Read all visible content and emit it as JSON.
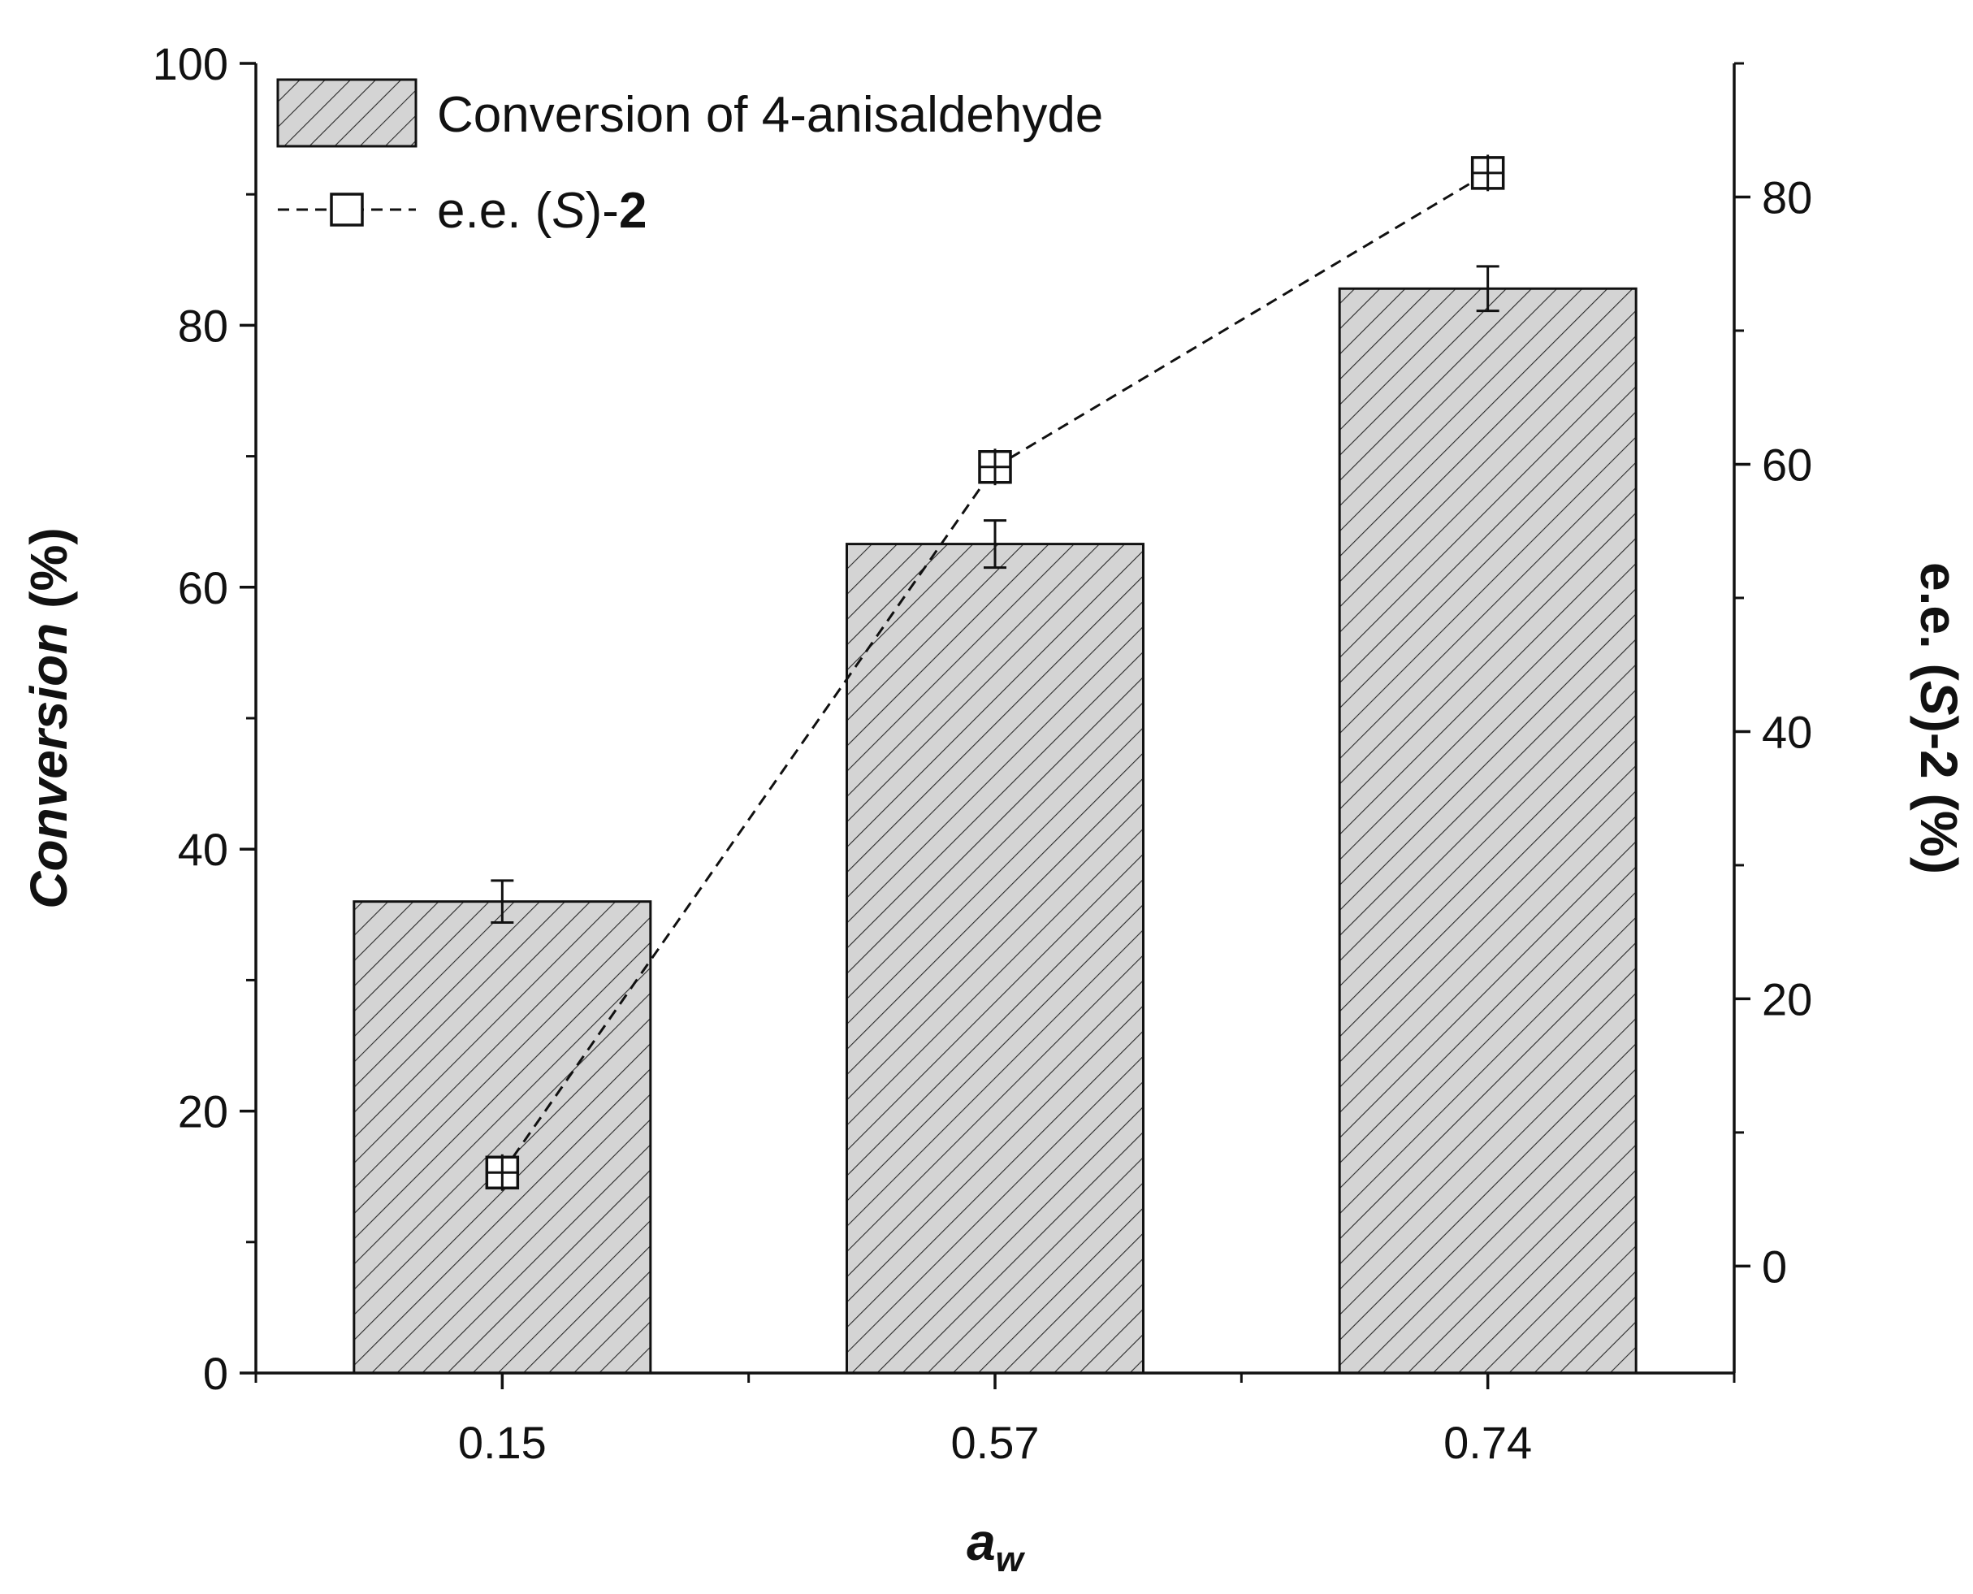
{
  "chart_data": {
    "type": "bar",
    "xlabel": "a",
    "xlabel_sub": "w",
    "categories": [
      "0.15",
      "0.57",
      "0.74"
    ],
    "left_axis": {
      "title_italic": "Conversion",
      "title_rest": " (%)",
      "ylim": [
        0,
        100
      ],
      "ticks": [
        0,
        20,
        40,
        60,
        80,
        100
      ],
      "tick_labels": [
        "0",
        "20",
        "40",
        "60",
        "80",
        "100"
      ]
    },
    "right_axis": {
      "title_pre": "e.e. (",
      "title_italic": "S",
      "title_post": ")-2 (%)",
      "ylim": [
        -8,
        90
      ],
      "ticks": [
        0,
        20,
        40,
        60,
        80
      ],
      "tick_labels": [
        "0",
        "20",
        "40",
        "60",
        "80"
      ]
    },
    "series": [
      {
        "name": "Conversion of 4-anisaldehyde",
        "kind": "bar",
        "axis": "left",
        "values": [
          36.0,
          63.3,
          82.8
        ],
        "errors": [
          1.6,
          1.8,
          1.7
        ],
        "fill": "#d4d4d4",
        "hatch": "diagonal"
      },
      {
        "name_pre": "e.e. (",
        "name_italic": "S",
        "name_mid": ")-",
        "name_bold": "2",
        "kind": "line",
        "axis": "right",
        "style": "dashed",
        "marker": "open-square",
        "values": [
          7.0,
          59.8,
          81.8
        ],
        "errors": [
          1.0,
          1.0,
          1.0
        ]
      }
    ],
    "legend_position": "top-left"
  }
}
